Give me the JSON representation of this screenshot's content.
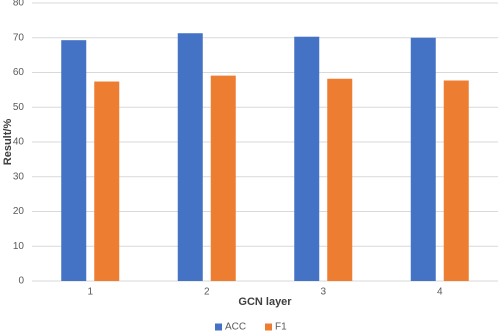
{
  "chart_data": {
    "type": "bar",
    "categories": [
      "1",
      "2",
      "3",
      "4"
    ],
    "series": [
      {
        "name": "ACC",
        "color": "#4472c4",
        "values": [
          69.3,
          71.3,
          70.3,
          70.0
        ]
      },
      {
        "name": "F1",
        "color": "#ed7d31",
        "values": [
          57.4,
          59.1,
          58.2,
          57.7
        ]
      }
    ],
    "x_label": "GCN layer",
    "y_label": "Result/%",
    "ylim": [
      0,
      80
    ],
    "yticks": [
      0,
      10,
      20,
      30,
      40,
      50,
      60,
      70,
      80
    ],
    "grid": true,
    "legend": "bottom"
  }
}
